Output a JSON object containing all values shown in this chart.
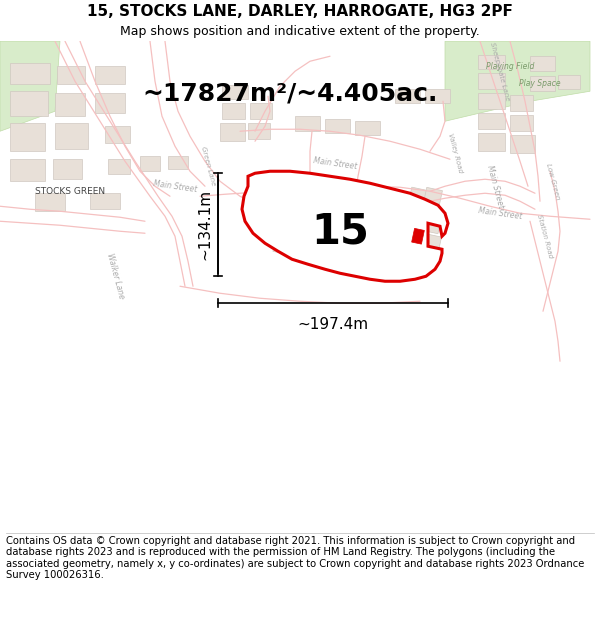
{
  "title": "15, STOCKS LANE, DARLEY, HARROGATE, HG3 2PF",
  "subtitle": "Map shows position and indicative extent of the property.",
  "area_text": "~17827m²/~4.405ac.",
  "label_15": "15",
  "dim_height": "~134.1m",
  "dim_width": "~197.4m",
  "footer": "Contains OS data © Crown copyright and database right 2021. This information is subject to Crown copyright and database rights 2023 and is reproduced with the permission of HM Land Registry. The polygons (including the associated geometry, namely x, y co-ordinates) are subject to Crown copyright and database rights 2023 Ordnance Survey 100026316.",
  "bg_color": "#ffffff",
  "map_bg": "#ffffff",
  "road_color": "#f5c0c0",
  "building_fill": "#e8e0d8",
  "building_edge": "#d0c8c0",
  "red_color": "#dd0000",
  "green_fill": "#d8ecca",
  "green_edge": "#c0dca8",
  "text_road": "#aaaaaa",
  "text_dark": "#555555",
  "title_fontsize": 11,
  "subtitle_fontsize": 9,
  "area_fontsize": 18,
  "dim_fontsize": 11,
  "footer_fontsize": 7.2,
  "label_fontsize": 30
}
